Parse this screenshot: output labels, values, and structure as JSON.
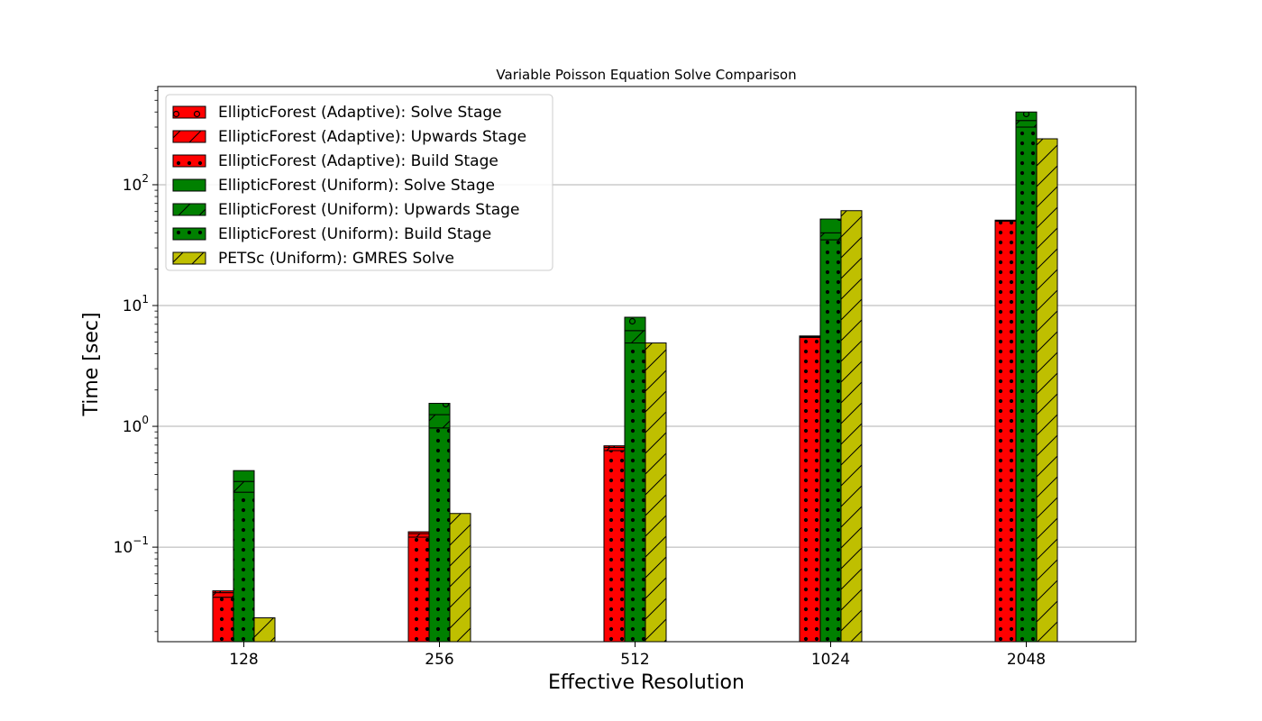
{
  "chart_data": {
    "type": "bar",
    "stacked": true,
    "title": "Variable Poisson Equation Solve Comparison",
    "xlabel": "Effective Resolution",
    "ylabel": "Time [sec]",
    "yscale": "log",
    "ylim": [
      0.0165,
      650
    ],
    "y_ticks": [
      {
        "value": 0.1,
        "base": "10",
        "exp": "−1"
      },
      {
        "value": 1,
        "base": "10",
        "exp": "0"
      },
      {
        "value": 10,
        "base": "10",
        "exp": "1"
      },
      {
        "value": 100,
        "base": "10",
        "exp": "2"
      }
    ],
    "grid": "y-major",
    "legend_position": "upper-left",
    "categories": [
      "128",
      "256",
      "512",
      "1024",
      "2048"
    ],
    "groups": [
      {
        "name": "EllipticForest (Adaptive)",
        "color": "#ff0000",
        "stages": [
          {
            "legend": "EllipticForest (Adaptive): Build Stage",
            "hatch": "dots",
            "values": [
              0.0385,
              0.121,
              0.63,
              5.45,
              50.0
            ]
          },
          {
            "legend": "EllipticForest (Adaptive): Upwards Stage",
            "hatch": "slash",
            "values": [
              0.0035,
              0.0085,
              0.04,
              0.1,
              0.6
            ]
          },
          {
            "legend": "EllipticForest (Adaptive): Solve Stage",
            "hatch": "circles",
            "values": [
              0.0015,
              0.0045,
              0.02,
              0.05,
              0.3
            ]
          }
        ]
      },
      {
        "name": "EllipticForest (Uniform)",
        "color": "#008000",
        "stages": [
          {
            "legend": "EllipticForest (Uniform): Build Stage",
            "hatch": "dots",
            "values": [
              0.285,
              0.97,
              4.9,
              35.0,
              300.0
            ]
          },
          {
            "legend": "EllipticForest (Uniform): Upwards Stage",
            "hatch": "slash",
            "values": [
              0.065,
              0.28,
              1.3,
              5.0,
              40.0
            ]
          },
          {
            "legend": "EllipticForest (Uniform): Solve Stage",
            "hatch": "circles",
            "values": [
              0.08,
              0.3,
              1.8,
              12.0,
              60.0
            ]
          }
        ]
      },
      {
        "name": "PETSc (Uniform)",
        "color": "#bfbf00",
        "stages": [
          {
            "legend": "PETSc (Uniform): GMRES Solve",
            "hatch": "slash",
            "values": [
              0.026,
              0.19,
              4.9,
              61.0,
              240.0
            ]
          }
        ]
      }
    ],
    "legend": [
      {
        "label": "EllipticForest (Adaptive): Solve Stage",
        "color": "#ff0000",
        "hatch": "circles"
      },
      {
        "label": "EllipticForest (Adaptive): Upwards Stage",
        "color": "#ff0000",
        "hatch": "slash"
      },
      {
        "label": "EllipticForest (Adaptive): Build Stage",
        "color": "#ff0000",
        "hatch": "dots"
      },
      {
        "label": "EllipticForest (Uniform): Solve Stage",
        "color": "#008000",
        "hatch": "circles"
      },
      {
        "label": "EllipticForest (Uniform): Upwards Stage",
        "color": "#008000",
        "hatch": "slash"
      },
      {
        "label": "EllipticForest (Uniform): Build Stage",
        "color": "#008000",
        "hatch": "dots"
      },
      {
        "label": "PETSc (Uniform): GMRES Solve",
        "color": "#bfbf00",
        "hatch": "slash"
      }
    ]
  }
}
